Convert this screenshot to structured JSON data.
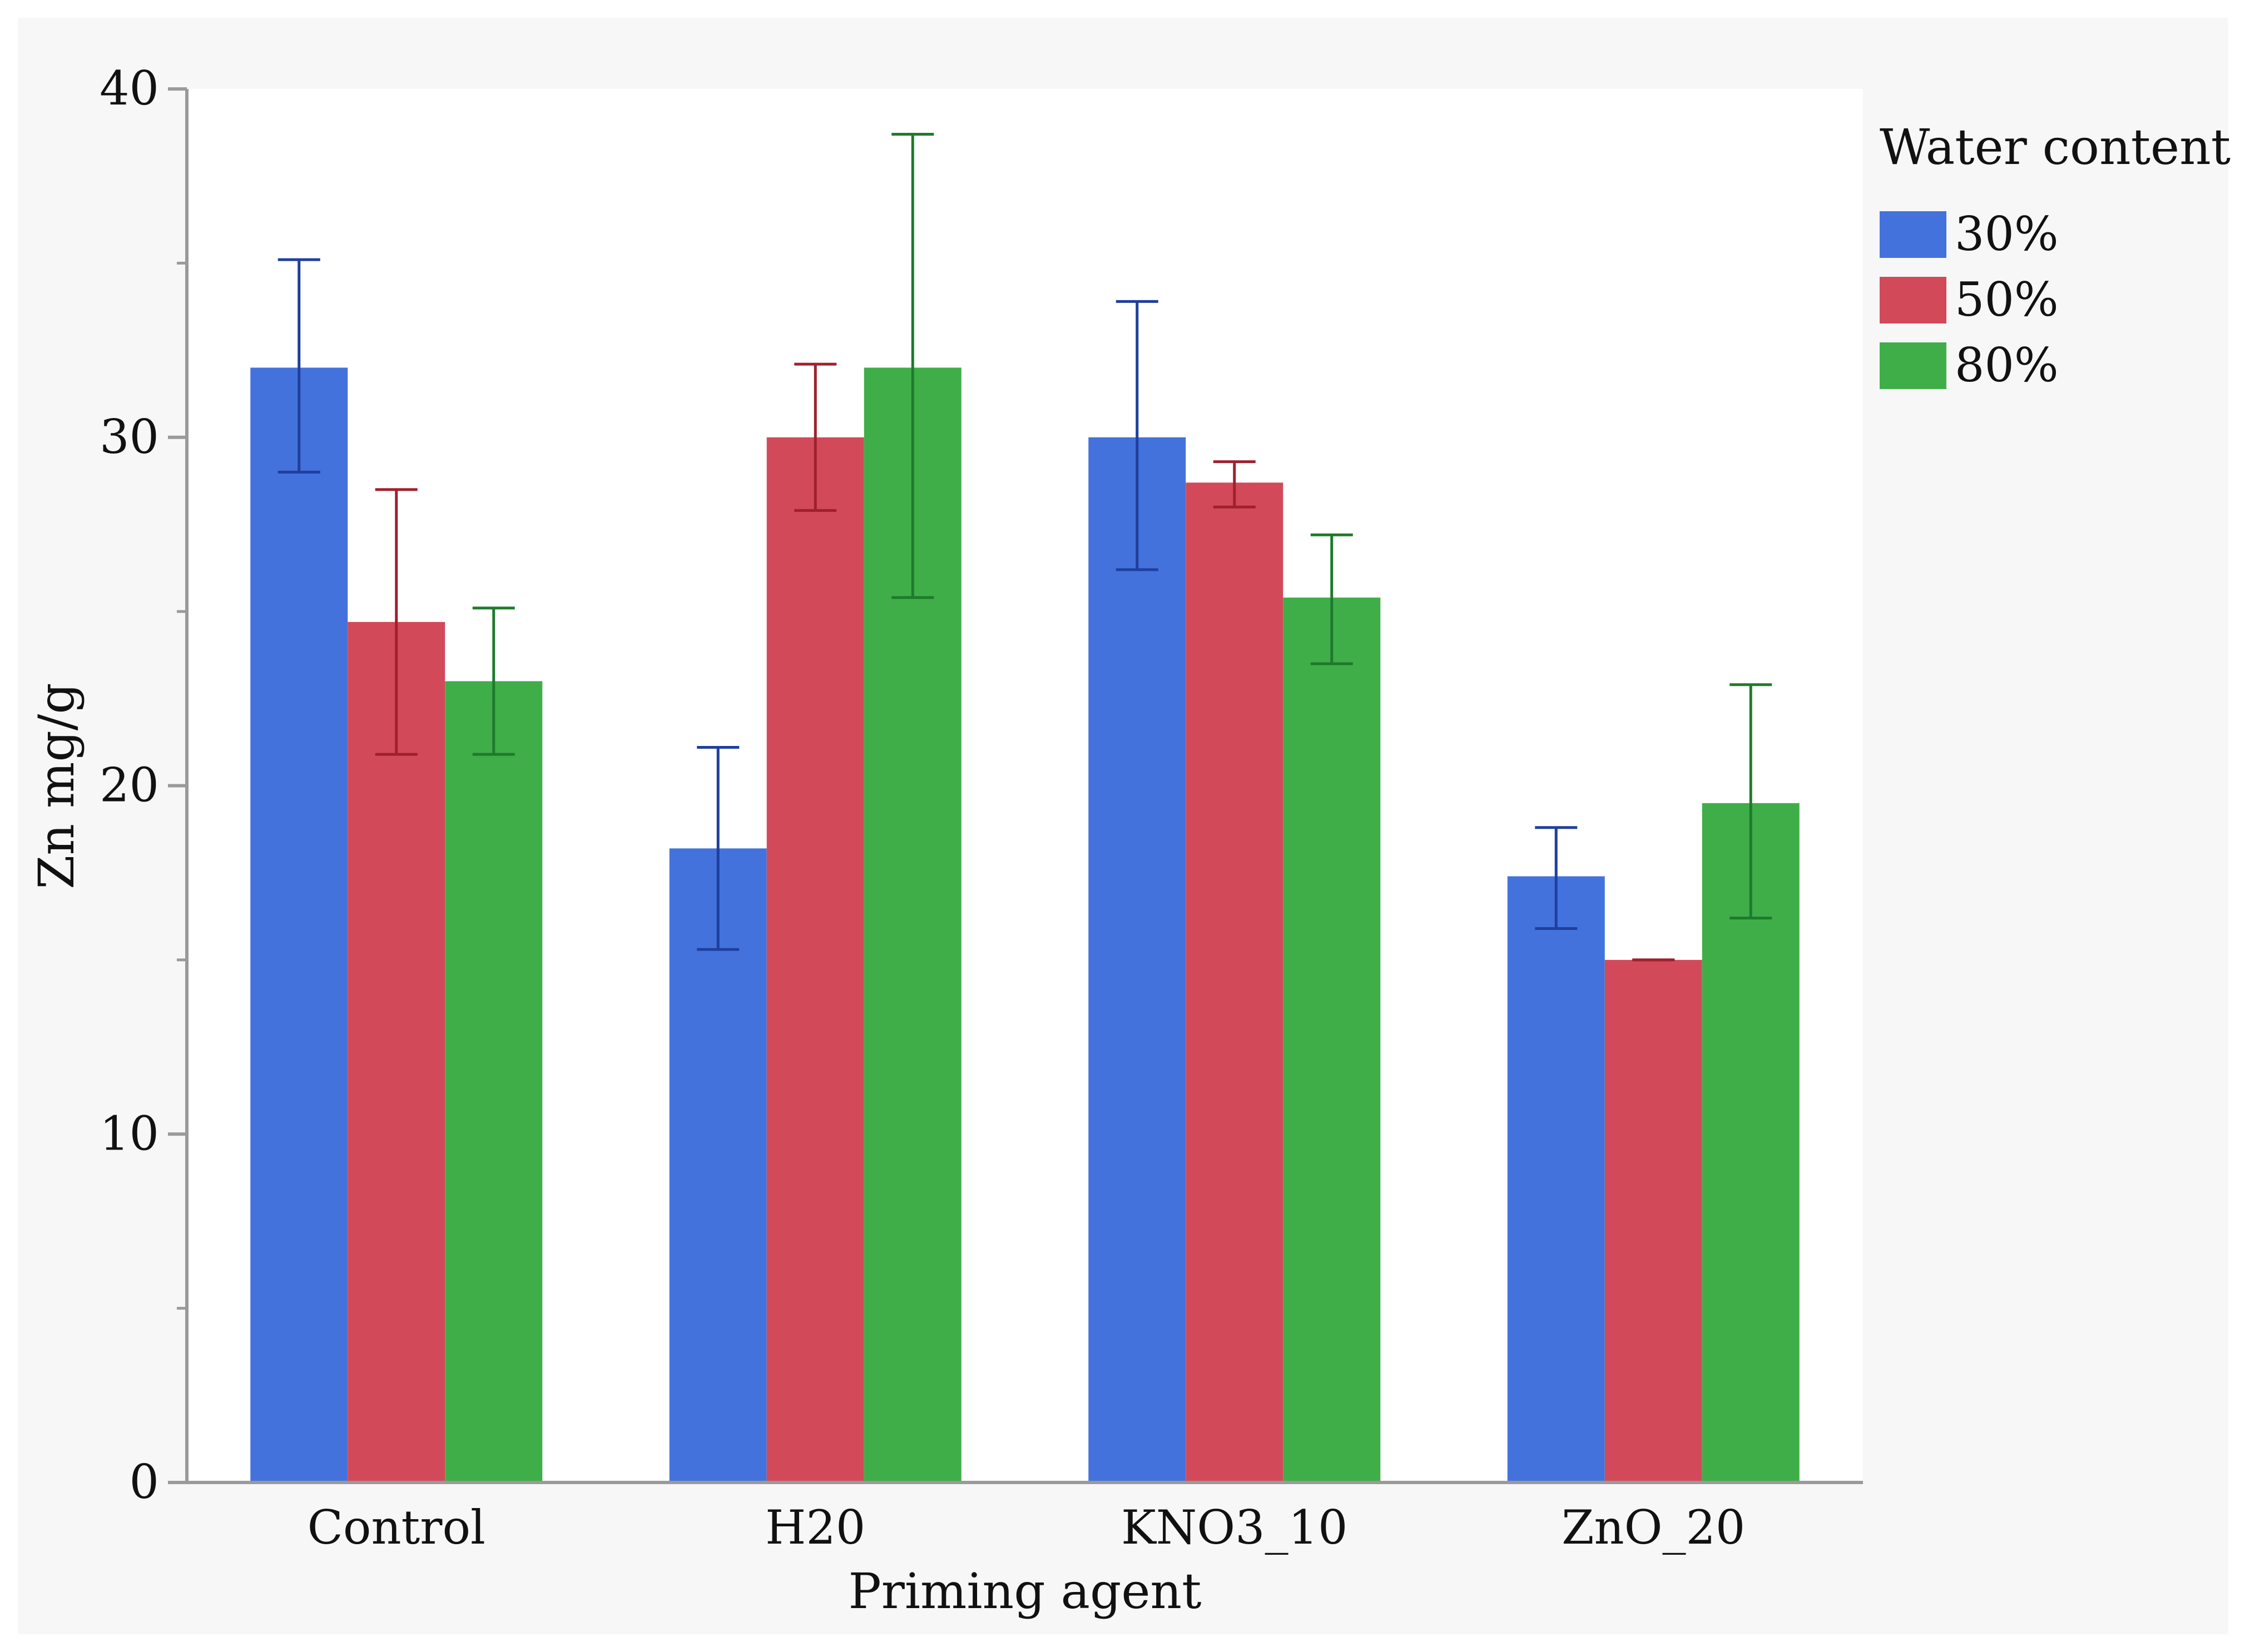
{
  "chart_data": {
    "type": "bar",
    "title": "",
    "xlabel": "Priming agent",
    "ylabel": "Zn mg/g",
    "ylim": [
      0,
      40
    ],
    "yticks": [
      0,
      10,
      20,
      30,
      40
    ],
    "yticks_minor": [
      5,
      15,
      25,
      35
    ],
    "grid": false,
    "legend_title": "Water content",
    "legend_position": "top-right outside",
    "categories": [
      "Control",
      "H20",
      "KNO3_10",
      "ZnO_20"
    ],
    "series": [
      {
        "name": "30%",
        "color": "#4472DC",
        "error_color": "#1F3F9E",
        "values": [
          32.0,
          18.2,
          30.0,
          17.4
        ],
        "err_low": [
          29.0,
          15.3,
          26.2,
          15.9
        ],
        "err_high": [
          35.1,
          21.1,
          33.9,
          18.8
        ]
      },
      {
        "name": "50%",
        "color": "#D24A5A",
        "error_color": "#A0202E",
        "values": [
          24.7,
          30.0,
          28.7,
          15.0
        ],
        "err_low": [
          20.9,
          27.9,
          28.0,
          15.0
        ],
        "err_high": [
          28.5,
          32.1,
          29.3,
          15.0
        ]
      },
      {
        "name": "80%",
        "color": "#3FAE48",
        "error_color": "#1E7A2C",
        "values": [
          23.0,
          32.0,
          25.4,
          19.5
        ],
        "err_low": [
          20.9,
          25.4,
          23.5,
          16.2
        ],
        "err_high": [
          25.1,
          38.7,
          27.2,
          22.9
        ]
      }
    ]
  }
}
